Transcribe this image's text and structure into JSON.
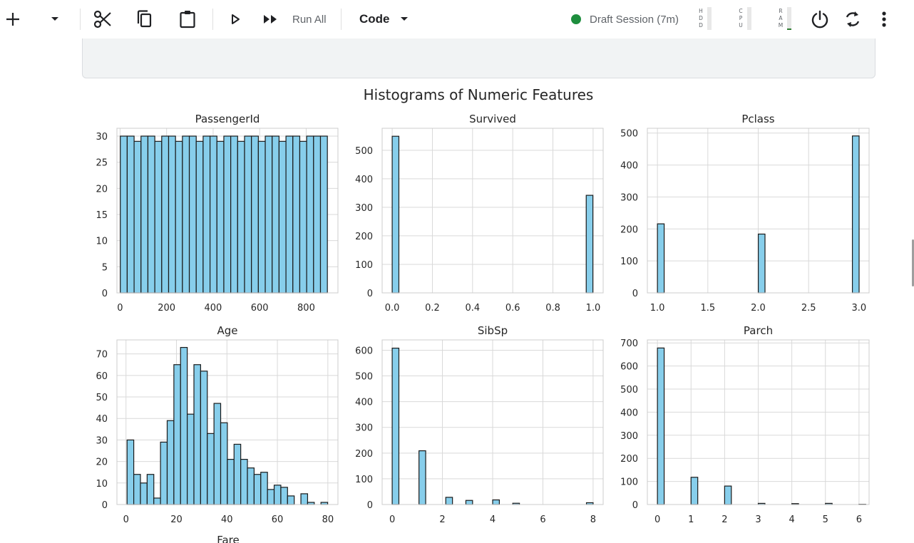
{
  "toolbar": {
    "icons": [
      "plus-icon",
      "chevron-down-icon",
      "scissors-icon",
      "copy-icon",
      "clipboard-icon",
      "play-icon",
      "fast-forward-icon",
      "power-icon",
      "refresh-icon",
      "more-vert-icon"
    ],
    "run_all_label": "Run All",
    "cell_type": "Code",
    "session_label": "Draft Session (7m)",
    "session_status_color": "#1e8e3e",
    "meters": [
      {
        "name": "hdd",
        "letters": [
          "H",
          "D",
          "D"
        ],
        "level": 0.0
      },
      {
        "name": "cpu",
        "letters": [
          "C",
          "P",
          "U"
        ],
        "level": 0.0
      },
      {
        "name": "ram",
        "letters": [
          "R",
          "A",
          "M"
        ],
        "level": 0.05
      }
    ]
  },
  "cell": {
    "code_fragment": "("
  },
  "chart_data": {
    "type": "bar",
    "title": "Histograms of Numeric Features",
    "bar_color": "#87ceeb",
    "edge_color": "#1a1a1a",
    "grid": true,
    "subplots": [
      {
        "title": "PassengerId",
        "xlim": [
          -13.5,
          936.5
        ],
        "ylim": [
          0,
          31.5
        ],
        "xticks": [
          0,
          200,
          400,
          600,
          800
        ],
        "xtick_labels": [
          "0",
          "200",
          "400",
          "600",
          "800"
        ],
        "yticks": [
          0,
          5,
          10,
          15,
          20,
          25,
          30
        ],
        "ytick_labels": [
          "0",
          "5",
          "10",
          "15",
          "20",
          "25",
          "30"
        ],
        "bin_start": 1,
        "bin_width": 29.67,
        "values": [
          30,
          30,
          29,
          30,
          30,
          29,
          30,
          30,
          29,
          30,
          30,
          29,
          30,
          30,
          29,
          30,
          30,
          29,
          30,
          30,
          29,
          30,
          30,
          29,
          30,
          30,
          29,
          30,
          30,
          30
        ]
      },
      {
        "title": "Survived",
        "xlim": [
          -0.05,
          1.05
        ],
        "ylim": [
          0,
          577
        ],
        "xticks": [
          0,
          0.2,
          0.4,
          0.6,
          0.8,
          1.0
        ],
        "xtick_labels": [
          "0.0",
          "0.2",
          "0.4",
          "0.6",
          "0.8",
          "1.0"
        ],
        "yticks": [
          0,
          100,
          200,
          300,
          400,
          500
        ],
        "ytick_labels": [
          "0",
          "100",
          "200",
          "300",
          "400",
          "500"
        ],
        "bin_start": 0,
        "bin_width": 0.0333,
        "values": [
          549,
          0,
          0,
          0,
          0,
          0,
          0,
          0,
          0,
          0,
          0,
          0,
          0,
          0,
          0,
          0,
          0,
          0,
          0,
          0,
          0,
          0,
          0,
          0,
          0,
          0,
          0,
          0,
          0,
          342
        ]
      },
      {
        "title": "Pclass",
        "xlim": [
          0.9,
          3.1
        ],
        "ylim": [
          0,
          515
        ],
        "xticks": [
          1.0,
          1.5,
          2.0,
          2.5,
          3.0
        ],
        "xtick_labels": [
          "1.0",
          "1.5",
          "2.0",
          "2.5",
          "3.0"
        ],
        "yticks": [
          0,
          100,
          200,
          300,
          400,
          500
        ],
        "ytick_labels": [
          "0",
          "100",
          "200",
          "300",
          "400",
          "500"
        ],
        "bin_start": 1,
        "bin_width": 0.0667,
        "values": [
          216,
          0,
          0,
          0,
          0,
          0,
          0,
          0,
          0,
          0,
          0,
          0,
          0,
          0,
          0,
          184,
          0,
          0,
          0,
          0,
          0,
          0,
          0,
          0,
          0,
          0,
          0,
          0,
          0,
          491
        ]
      },
      {
        "title": "Age",
        "xlim": [
          -3.6,
          84.0
        ],
        "ylim": [
          0,
          76.5
        ],
        "xticks": [
          0,
          20,
          40,
          60,
          80
        ],
        "xtick_labels": [
          "0",
          "20",
          "40",
          "60",
          "80"
        ],
        "yticks": [
          0,
          10,
          20,
          30,
          40,
          50,
          60,
          70
        ],
        "ytick_labels": [
          "0",
          "10",
          "20",
          "30",
          "40",
          "50",
          "60",
          "70"
        ],
        "bin_start": 0.42,
        "bin_width": 2.65,
        "values": [
          30,
          14,
          10,
          14,
          3,
          29,
          39,
          65,
          73,
          42,
          65,
          62,
          33,
          47,
          38,
          21,
          28,
          21,
          17,
          14,
          15,
          7,
          9,
          8,
          4,
          0,
          5,
          1,
          0,
          1
        ]
      },
      {
        "title": "SibSp",
        "xlim": [
          -0.4,
          8.4
        ],
        "ylim": [
          0,
          640
        ],
        "xticks": [
          0,
          2,
          4,
          6,
          8
        ],
        "xtick_labels": [
          "0",
          "2",
          "4",
          "6",
          "8"
        ],
        "yticks": [
          0,
          100,
          200,
          300,
          400,
          500,
          600
        ],
        "ytick_labels": [
          "0",
          "100",
          "200",
          "300",
          "400",
          "500",
          "600"
        ],
        "bin_start": 0,
        "bin_width": 0.2667,
        "values": [
          608,
          0,
          0,
          0,
          209,
          0,
          0,
          0,
          28,
          0,
          0,
          16,
          0,
          0,
          0,
          18,
          0,
          0,
          5,
          0,
          0,
          0,
          0,
          0,
          0,
          0,
          0,
          0,
          0,
          7
        ]
      },
      {
        "title": "Parch",
        "xlim": [
          -0.3,
          6.3
        ],
        "ylim": [
          0,
          713
        ],
        "xticks": [
          0,
          1,
          2,
          3,
          4,
          5,
          6
        ],
        "xtick_labels": [
          "0",
          "1",
          "2",
          "3",
          "4",
          "5",
          "6"
        ],
        "yticks": [
          0,
          100,
          200,
          300,
          400,
          500,
          600,
          700
        ],
        "ytick_labels": [
          "0",
          "100",
          "200",
          "300",
          "400",
          "500",
          "600",
          "700"
        ],
        "bin_start": 0,
        "bin_width": 0.2,
        "values": [
          678,
          0,
          0,
          0,
          0,
          118,
          0,
          0,
          0,
          0,
          80,
          0,
          0,
          0,
          0,
          5,
          0,
          0,
          0,
          0,
          4,
          0,
          0,
          0,
          0,
          5,
          0,
          0,
          0,
          0,
          1
        ]
      },
      {
        "title": "Fare"
      }
    ]
  }
}
